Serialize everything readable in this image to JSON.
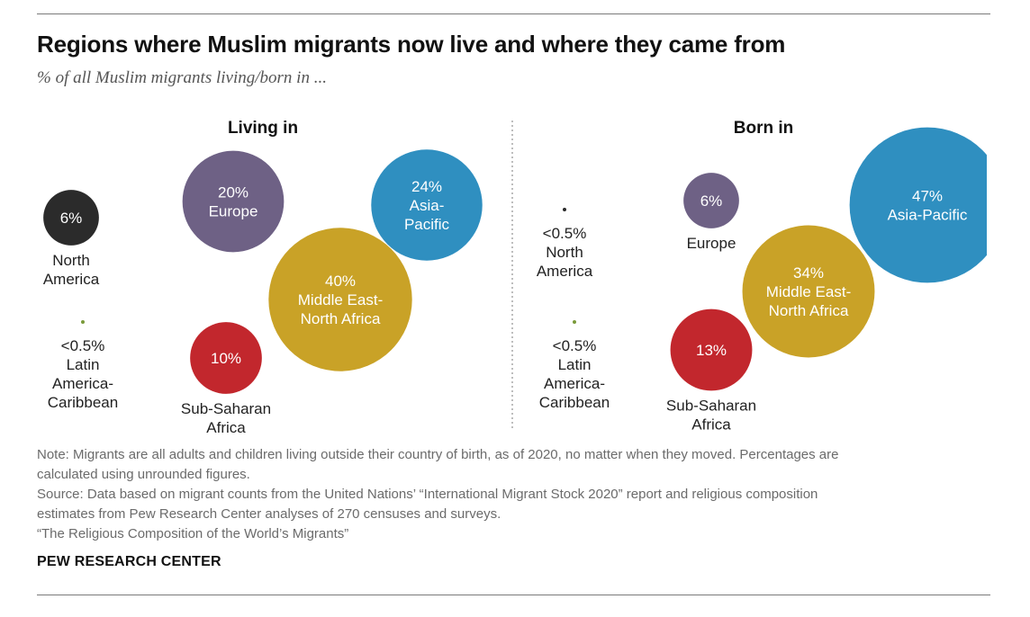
{
  "header": {
    "title": "Regions where Muslim migrants now live and where they came from",
    "subtitle": "% of all Muslim migrants living/born in ..."
  },
  "colors": {
    "north_america": "#2b2b2b",
    "europe": "#6e6185",
    "asia_pacific": "#2f8fc0",
    "mena": "#c9a227",
    "sub_saharan": "#c2272d",
    "latin_america": "#7a9a3a"
  },
  "chart_data": [
    {
      "type": "bubble",
      "title": "Living in",
      "bubbles": [
        {
          "id": "north-america",
          "value": 6,
          "label": "6%",
          "region": [
            "North",
            "America"
          ],
          "color": "#2b2b2b",
          "label_position": "below"
        },
        {
          "id": "europe",
          "value": 20,
          "label": "20%",
          "region": [
            "Europe"
          ],
          "color": "#6e6185",
          "label_position": "inside"
        },
        {
          "id": "asia-pacific",
          "value": 24,
          "label": "24%",
          "region": [
            "Asia-",
            "Pacific"
          ],
          "color": "#2f8fc0",
          "label_position": "inside"
        },
        {
          "id": "mena",
          "value": 40,
          "label": "40%",
          "region": [
            "Middle East-",
            "North Africa"
          ],
          "color": "#c9a227",
          "label_position": "inside"
        },
        {
          "id": "sub-saharan",
          "value": 10,
          "label": "10%",
          "region": [
            "Sub-Saharan",
            "Africa"
          ],
          "color": "#c2272d",
          "label_position": "below"
        },
        {
          "id": "latin-america",
          "value": 0.3,
          "label": "<0.5%",
          "region": [
            "Latin",
            "America-",
            "Caribbean"
          ],
          "color": "#7a9a3a",
          "label_position": "below"
        }
      ]
    },
    {
      "type": "bubble",
      "title": "Born in",
      "bubbles": [
        {
          "id": "north-america",
          "value": 0.3,
          "label": "<0.5%",
          "region": [
            "North",
            "America"
          ],
          "color": "#2b2b2b",
          "label_position": "below"
        },
        {
          "id": "europe",
          "value": 6,
          "label": "6%",
          "region": [
            "Europe"
          ],
          "color": "#6e6185",
          "label_position": "below"
        },
        {
          "id": "asia-pacific",
          "value": 47,
          "label": "47%",
          "region": [
            "Asia-Pacific"
          ],
          "color": "#2f8fc0",
          "label_position": "inside"
        },
        {
          "id": "mena",
          "value": 34,
          "label": "34%",
          "region": [
            "Middle East-",
            "North Africa"
          ],
          "color": "#c9a227",
          "label_position": "inside"
        },
        {
          "id": "sub-saharan",
          "value": 13,
          "label": "13%",
          "region": [
            "Sub-Saharan",
            "Africa"
          ],
          "color": "#c2272d",
          "label_position": "below"
        },
        {
          "id": "latin-america",
          "value": 0.3,
          "label": "<0.5%",
          "region": [
            "Latin",
            "America-",
            "Caribbean"
          ],
          "color": "#7a9a3a",
          "label_position": "below"
        }
      ]
    }
  ],
  "notes": {
    "note_line1": "Note: Migrants are all adults and children living outside their country of birth, as of 2020, no matter when they moved. Percentages are",
    "note_line2": "calculated using unrounded figures.",
    "source_line1": "Source: Data based on migrant counts from the United Nations’ “International Migrant Stock 2020” report and religious composition",
    "source_line2": "estimates from Pew Research Center analyses of 270 censuses and surveys.",
    "report": "“The Religious Composition of the World’s Migrants”"
  },
  "footer": {
    "brand": "PEW RESEARCH CENTER"
  }
}
